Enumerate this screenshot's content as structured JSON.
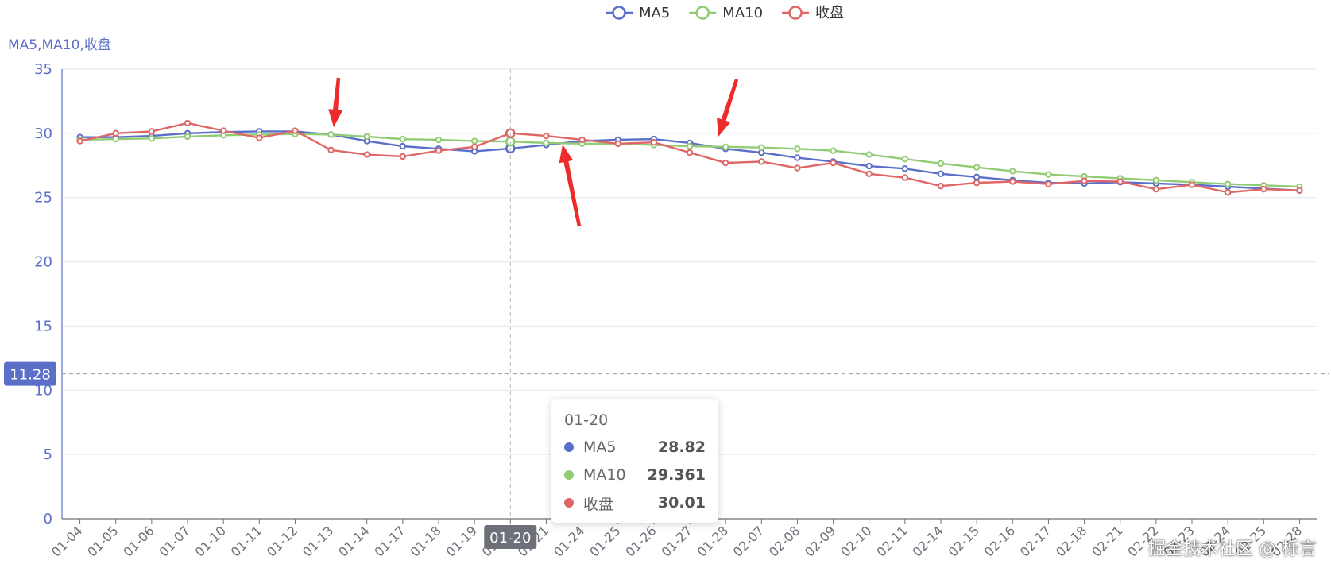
{
  "chart_data": {
    "type": "line",
    "ylabel": "MA5,MA10,收盘",
    "ylim": [
      0,
      35
    ],
    "yticks": [
      0,
      5,
      10,
      15,
      20,
      25,
      30,
      35
    ],
    "grid": true,
    "legend": "top-center",
    "categories": [
      "01-04",
      "01-05",
      "01-06",
      "01-07",
      "01-10",
      "01-11",
      "01-12",
      "01-13",
      "01-14",
      "01-17",
      "01-18",
      "01-19",
      "01-20",
      "01-21",
      "01-24",
      "01-25",
      "01-26",
      "01-27",
      "01-28",
      "02-07",
      "02-08",
      "02-09",
      "02-10",
      "02-11",
      "02-14",
      "02-15",
      "02-16",
      "02-17",
      "02-18",
      "02-21",
      "02-22",
      "02-23",
      "02-24",
      "02-25",
      "02-28"
    ],
    "series": [
      {
        "name": "MA5",
        "color": "#5b6fc9",
        "values": [
          29.7,
          29.7,
          29.8,
          30.0,
          30.1,
          30.15,
          30.15,
          29.9,
          29.4,
          29.0,
          28.8,
          28.6,
          28.82,
          29.1,
          29.4,
          29.5,
          29.55,
          29.25,
          28.8,
          28.5,
          28.1,
          27.8,
          27.45,
          27.25,
          26.85,
          26.6,
          26.35,
          26.15,
          26.1,
          26.2,
          26.1,
          26.0,
          25.85,
          25.7,
          25.55
        ]
      },
      {
        "name": "MA10",
        "color": "#91cc75",
        "values": [
          29.5,
          29.55,
          29.6,
          29.75,
          29.85,
          29.9,
          29.95,
          29.9,
          29.75,
          29.55,
          29.5,
          29.4,
          29.361,
          29.25,
          29.2,
          29.2,
          29.1,
          29.0,
          28.95,
          28.9,
          28.8,
          28.65,
          28.35,
          28.0,
          27.65,
          27.35,
          27.05,
          26.8,
          26.65,
          26.5,
          26.35,
          26.2,
          26.05,
          25.95,
          25.85
        ]
      },
      {
        "name": "收盘",
        "color": "#e06666",
        "values": [
          29.4,
          30.0,
          30.15,
          30.8,
          30.2,
          29.65,
          30.2,
          28.7,
          28.35,
          28.2,
          28.65,
          28.95,
          30.01,
          29.8,
          29.5,
          29.2,
          29.3,
          28.5,
          27.7,
          27.8,
          27.3,
          27.7,
          26.85,
          26.55,
          25.9,
          26.15,
          26.25,
          26.05,
          26.3,
          26.25,
          25.65,
          26.0,
          25.4,
          25.65,
          25.55
        ]
      }
    ],
    "crosshair": {
      "x_label": "01-20",
      "y_label": "11.28",
      "y_value": 11.28
    }
  },
  "tooltip": {
    "title": "01-20",
    "rows": [
      {
        "name": "MA5",
        "value": "28.82",
        "color": "#5b6fc9"
      },
      {
        "name": "MA10",
        "value": "29.361",
        "color": "#91cc75"
      },
      {
        "name": "收盘",
        "value": "30.01",
        "color": "#e06666"
      }
    ]
  },
  "watermark": "掘金技术社区 @ 栎言"
}
